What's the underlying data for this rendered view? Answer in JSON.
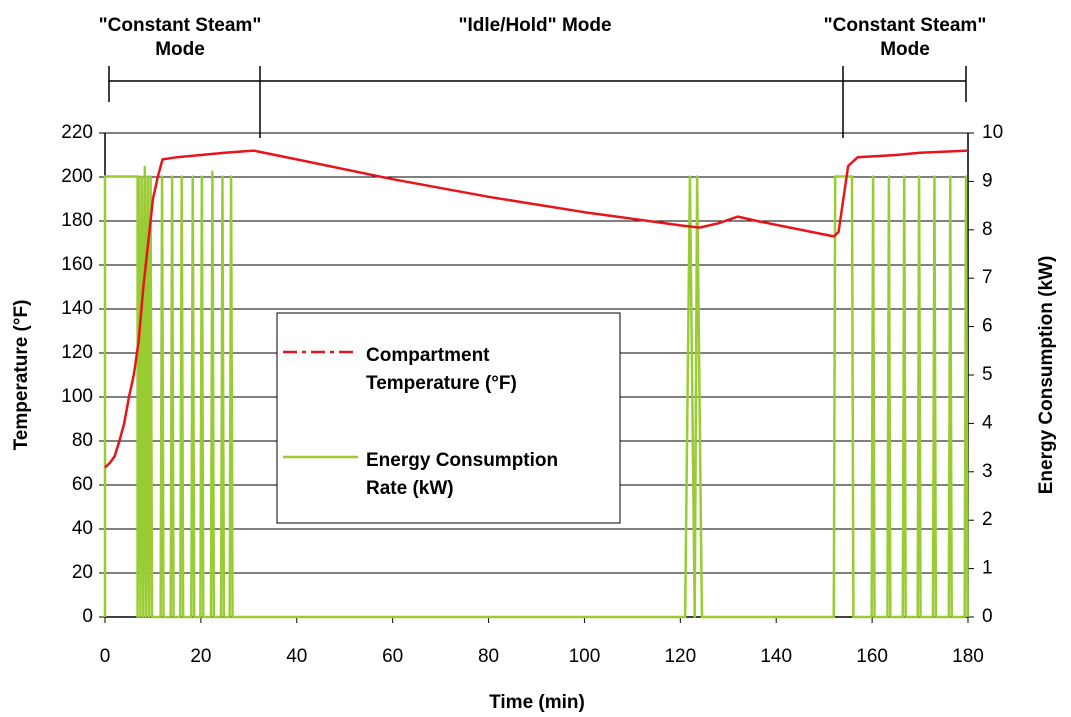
{
  "chart_data": {
    "type": "line",
    "xlabel": "Time (min)",
    "ylabel": "Temperature (°F)",
    "y2label": "Energy Consumption (kW)",
    "annotations": [
      "\"Constant Steam\" Mode",
      "\"Idle/Hold\" Mode",
      "\"Constant Steam\" Mode"
    ],
    "xlim": [
      0,
      180
    ],
    "xticks": [
      0,
      20,
      40,
      60,
      80,
      100,
      120,
      140,
      160,
      180
    ],
    "ylim": [
      0,
      220
    ],
    "yticks": [
      0,
      20,
      40,
      60,
      80,
      100,
      120,
      140,
      160,
      180,
      200,
      220
    ],
    "y2lim": [
      0,
      10
    ],
    "y2ticks": [
      0,
      1,
      2,
      3,
      4,
      5,
      6,
      7,
      8,
      9,
      10
    ],
    "grid": true,
    "series": [
      {
        "name": "Compartment Temperature (°F)",
        "color": "#e8141c",
        "axis": "y",
        "x": [
          0,
          1,
          2,
          3,
          4,
          5,
          6,
          7,
          8,
          9,
          10,
          11,
          12,
          15,
          20,
          25,
          31,
          40,
          60,
          80,
          100,
          120,
          124,
          128,
          132,
          136,
          152,
          153,
          154,
          155,
          157,
          165,
          170,
          180
        ],
        "values": [
          68,
          70,
          73,
          80,
          88,
          100,
          110,
          125,
          150,
          170,
          190,
          200,
          208,
          209,
          210,
          211,
          212,
          208,
          199,
          191,
          184,
          178,
          177,
          179,
          182,
          180,
          173,
          175,
          190,
          205,
          209,
          210,
          211,
          212
        ]
      },
      {
        "name": "Energy Consumption Rate (kW)",
        "color": "#99cc33",
        "axis": "y2",
        "x": [
          0,
          0,
          6.8,
          6.8,
          7.1,
          7.4,
          7.7,
          8.0,
          8.3,
          8.6,
          8.9,
          9.2,
          9.5,
          9.8,
          11.6,
          11.9,
          12.2,
          13.7,
          14.0,
          14.3,
          15.7,
          16.0,
          16.3,
          18.0,
          18.3,
          18.6,
          19.9,
          20.2,
          20.5,
          22.1,
          22.4,
          22.7,
          24.2,
          24.5,
          24.8,
          26.0,
          26.3,
          26.6,
          121.0,
          122.0,
          123.0,
          123.5,
          124.5,
          152.0,
          152.3,
          155.8,
          156.1,
          159.9,
          160.2,
          160.5,
          163.2,
          163.5,
          163.8,
          166.4,
          166.7,
          167.0,
          169.5,
          169.8,
          170.1,
          172.7,
          173.0,
          173.3,
          176.0,
          176.3,
          176.6,
          179.3,
          179.6,
          179.9
        ],
        "values": [
          0,
          9.1,
          9.1,
          0,
          9.1,
          0,
          9.1,
          0,
          9.3,
          0,
          9.1,
          0,
          9.1,
          0,
          0,
          9.1,
          0,
          0,
          9.1,
          0,
          0,
          9.1,
          0,
          0,
          9.1,
          0,
          0,
          9.1,
          0,
          0,
          9.2,
          0,
          0,
          9.1,
          0,
          0,
          9.1,
          0,
          0,
          9.1,
          0,
          9.1,
          0,
          0,
          9.1,
          9.1,
          0,
          0,
          9.1,
          0,
          0,
          9.1,
          0,
          0,
          9.1,
          0,
          0,
          9.1,
          0,
          0,
          9.1,
          0,
          0,
          9.1,
          0,
          0,
          9.1,
          0
        ]
      }
    ]
  }
}
